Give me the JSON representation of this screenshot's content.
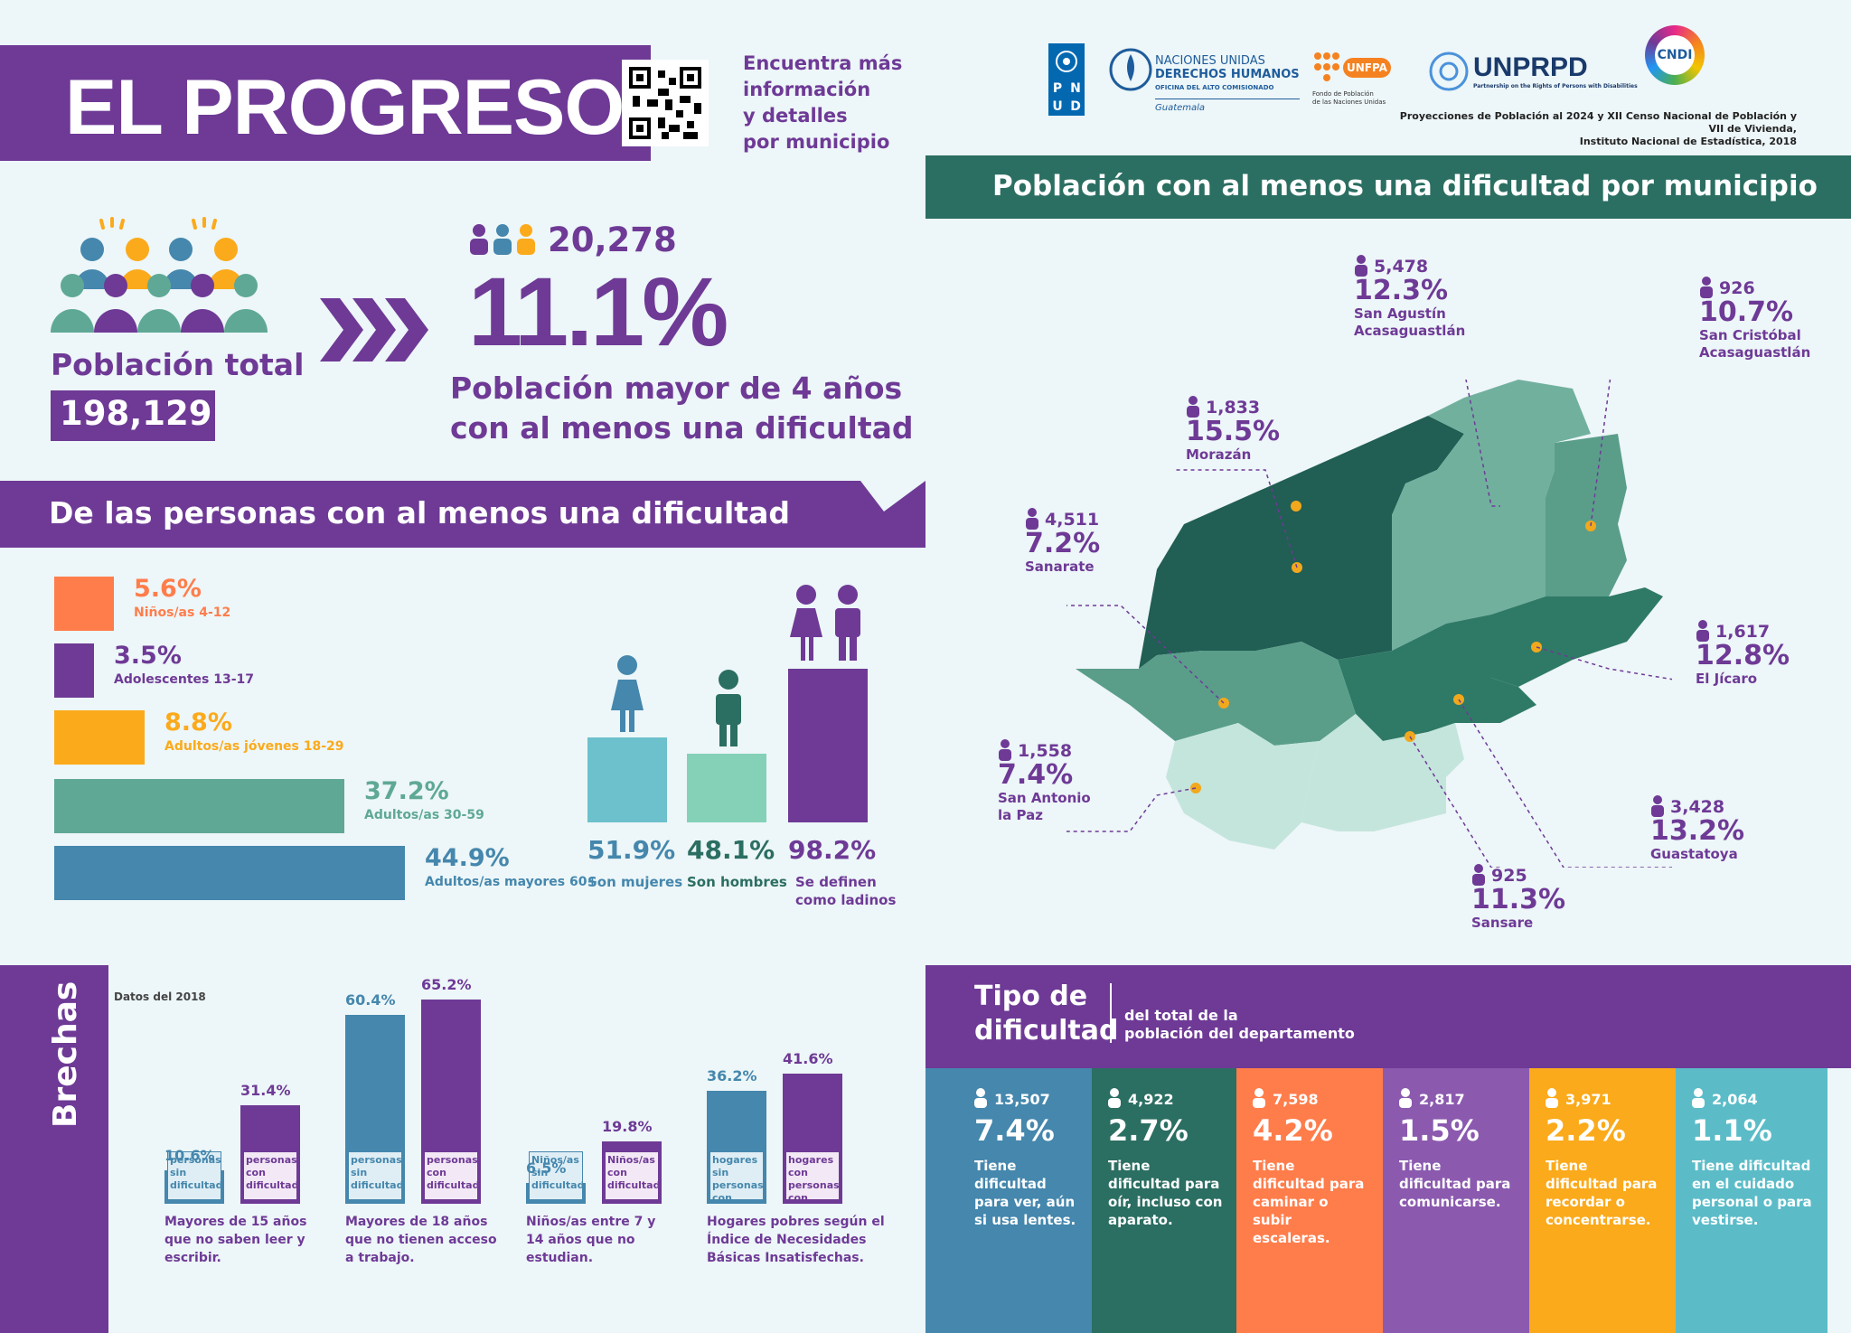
{
  "header": {
    "title": "EL PROGRESO",
    "qr_text": "Encuentra más información y detalles por municipio",
    "qr_lines": [
      "Encuentra más",
      "información",
      "y detalles",
      "por municipio"
    ]
  },
  "population": {
    "label": "Población total",
    "value": "198,129",
    "count": "20,278",
    "percent": "11.1%",
    "desc_lines": [
      "Población mayor de 4 años",
      "con al menos una dificultad"
    ]
  },
  "section_age": {
    "title": "De las personas con al menos una dificultad"
  },
  "age_groups": [
    {
      "pct": "5.6%",
      "label": "Niños/as 4-12",
      "value": 5.6,
      "color": "#ff7d4b"
    },
    {
      "pct": "3.5%",
      "label": "Adolescentes 13-17",
      "value": 3.5,
      "color": "#6e3a96"
    },
    {
      "pct": "8.8%",
      "label": "Adultos/as  jóvenes 18-29",
      "value": 8.8,
      "color": "#fbaa1b"
    },
    {
      "pct": "37.2%",
      "label": "Adultos/as 30-59",
      "value": 37.2,
      "color": "#5fa896"
    },
    {
      "pct": "44.9%",
      "label": "Adultos/as mayores 60+",
      "value": 44.9,
      "color": "#4587ad"
    }
  ],
  "gender": [
    {
      "pct": "51.9%",
      "label": "Son mujeres",
      "color": "#6cc1cc",
      "value": 51.9
    },
    {
      "pct": "48.1%",
      "label": "Son hombres",
      "color": "#84d1b8",
      "value": 48.1
    },
    {
      "pct": "98.2%",
      "label": "Se definen como ladinos",
      "label_lines": [
        "Se definen",
        "como ladinos"
      ],
      "color": "#6e3a96",
      "value": 98.2
    }
  ],
  "logos": {
    "pnud": [
      "P",
      "N",
      "U",
      "D"
    ],
    "ohchr": [
      "NACIONES UNIDAS",
      "DERECHOS HUMANOS",
      "OFICINA DEL ALTO COMISIONADO",
      "Guatemala"
    ],
    "unfpa": "UNFPA",
    "unfpa_sub": [
      "Fondo de Población",
      "de las Naciones Unidas"
    ],
    "unprpd": "UNPRPD",
    "unprpd_sub": "Partnership on the Rights of Persons with Disabilities",
    "conadi": "CNDI",
    "source_lines": [
      "Proyecciones de Población al 2024 y XII Censo Nacional de Población y VII de Vivienda,",
      "Instituto Nacional de Estadística, 2018"
    ]
  },
  "map": {
    "title": "Población con al menos una dificultad por municipio",
    "municipios": [
      {
        "count": "5,478",
        "pct": "12.3%",
        "name": "San Agustín",
        "name2": "Acasaguastlán"
      },
      {
        "count": "926",
        "pct": "10.7%",
        "name": "San Cristóbal",
        "name2": "Acasaguastlán"
      },
      {
        "count": "1,833",
        "pct": "15.5%",
        "name": "Morazán",
        "name2": ""
      },
      {
        "count": "4,511",
        "pct": "7.2%",
        "name": "Sanarate",
        "name2": ""
      },
      {
        "count": "1,617",
        "pct": "12.8%",
        "name": "El Jícaro",
        "name2": ""
      },
      {
        "count": "1,558",
        "pct": "7.4%",
        "name": "San Antonio",
        "name2": "la Paz"
      },
      {
        "count": "3,428",
        "pct": "13.2%",
        "name": "Guastatoya",
        "name2": ""
      },
      {
        "count": "925",
        "pct": "11.3%",
        "name": "Sansare",
        "name2": ""
      }
    ]
  },
  "brechas": {
    "title": "Brechas",
    "note": "Datos del 2018",
    "groups": [
      {
        "a_pct": "10.6%",
        "a_val": 10.6,
        "a_tag": "personas sin dificultad",
        "b_pct": "31.4%",
        "b_val": 31.4,
        "b_tag": "personas con dificultad",
        "caption": "Mayores de 15 años que no saben leer y escribir.",
        "caption_lines": [
          "Mayores de 15 años",
          "que no saben leer y",
          "escribir."
        ]
      },
      {
        "a_pct": "60.4%",
        "a_val": 60.4,
        "a_tag": "personas sin dificultad",
        "b_pct": "65.2%",
        "b_val": 65.2,
        "b_tag": "personas con dificultad",
        "caption": "Mayores de 18 años que no tienen acceso a trabajo.",
        "caption_lines": [
          "Mayores de 18 años",
          "que no tienen acceso",
          "a trabajo."
        ]
      },
      {
        "a_pct": "6.5%",
        "a_val": 6.5,
        "a_tag": "Niños/as sin dificultad",
        "b_pct": "19.8%",
        "b_val": 19.8,
        "b_tag": "Niños/as con dificultad",
        "caption": "Niños/as entre 7 y 14 años que no estudian.",
        "caption_lines": [
          "Niños/as entre 7 y",
          "14 años que no",
          "estudian."
        ]
      },
      {
        "a_pct": "36.2%",
        "a_val": 36.2,
        "a_tag": "hogares sin personas con dificultad",
        "b_pct": "41.6%",
        "b_val": 41.6,
        "b_tag": "hogares con personas con dificultad",
        "caption": "Hogares pobres según el Índice de Necesidades Básicas Insatisfechas.",
        "caption_lines": [
          "Hogares pobres según el",
          "Índice de Necesidades",
          "Básicas Insatisfechas."
        ]
      }
    ]
  },
  "tipo": {
    "title_lines": [
      "Tipo de",
      "dificultad"
    ],
    "subtitle_lines": [
      "del total de la",
      "población del departamento"
    ],
    "cards": [
      {
        "count": "13,507",
        "pct": "7.4%",
        "desc": "Tiene dificultad para ver, aún si usa lentes.",
        "color": "#4587ad",
        "text_color": "#ffffff"
      },
      {
        "count": "4,922",
        "pct": "2.7%",
        "desc": "Tiene dificultad para oír, incluso con aparato.",
        "color": "#2b6e62",
        "text_color": "#ffffff"
      },
      {
        "count": "7,598",
        "pct": "4.2%",
        "desc": "Tiene dificultad para caminar o subir escaleras.",
        "color": "#ff7d4b",
        "text_color": "#ffffff"
      },
      {
        "count": "2,817",
        "pct": "1.5%",
        "desc": "Tiene dificultad para comunicarse.",
        "color": "#8b5aaf",
        "text_color": "#ffffff"
      },
      {
        "count": "3,971",
        "pct": "2.2%",
        "desc": "Tiene dificultad para recordar o concentrarse.",
        "color": "#fbaa1b",
        "text_color": "#ffffff"
      },
      {
        "count": "2,064",
        "pct": "1.1%",
        "desc": "Tiene dificultad en el cuidado personal o para vestirse.",
        "color": "#5bbcc8",
        "text_color": "#ffffff"
      }
    ]
  }
}
